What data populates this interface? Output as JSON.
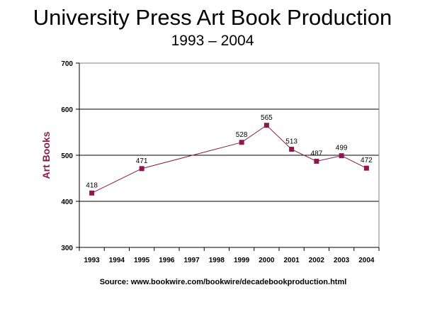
{
  "chart_data": {
    "type": "line",
    "title": "University Press Art Book Production",
    "subtitle": "1993 – 2004",
    "xlabel": "",
    "ylabel": "Art Books",
    "source": "Source: www.bookwire.com/bookwire/decadebookproduction.html",
    "x_categories": [
      "1993",
      "1994",
      "1995",
      "1996",
      "1997",
      "1998",
      "1999",
      "2000",
      "2001",
      "2002",
      "2003",
      "2004"
    ],
    "y_ticks": [
      300,
      400,
      500,
      600,
      700
    ],
    "ylim": [
      300,
      700
    ],
    "grid": true,
    "legend": "none",
    "series": [
      {
        "color": "#8B1A4A",
        "points": [
          {
            "x": "1993",
            "y": 418
          },
          {
            "x": "1995",
            "y": 471
          },
          {
            "x": "1999",
            "y": 528
          },
          {
            "x": "2000",
            "y": 565
          },
          {
            "x": "2001",
            "y": 513
          },
          {
            "x": "2002",
            "y": 487
          },
          {
            "x": "2003",
            "y": 499
          },
          {
            "x": "2004",
            "y": 472
          }
        ]
      }
    ]
  }
}
